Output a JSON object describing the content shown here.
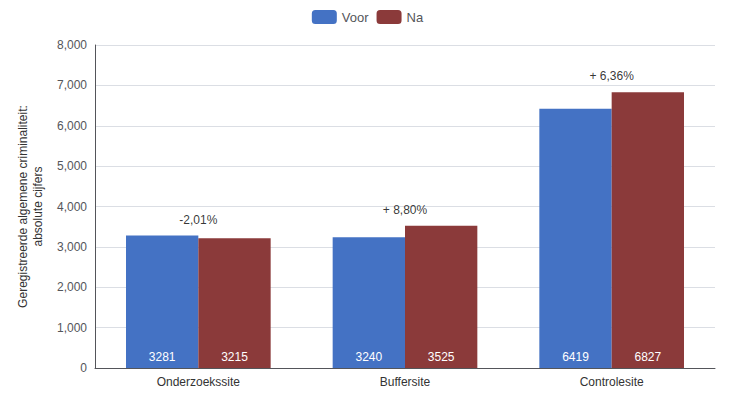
{
  "chart_data": {
    "type": "bar",
    "ylabel": "Geregistreerde algemene criminaliteit:\nabsolute cijfers",
    "categories": [
      "Onderzoekssite",
      "Buffersite",
      "Controlesite"
    ],
    "series": [
      {
        "name": "Voor",
        "color": "#4472C4",
        "values": [
          3281,
          3240,
          6419
        ]
      },
      {
        "name": "Na",
        "color": "#8B3A3A",
        "values": [
          3215,
          3525,
          6827
        ]
      }
    ],
    "annotations": [
      {
        "text": "-2,01%",
        "category": "Onderzoekssite"
      },
      {
        "text": "+ 8,80%",
        "category": "Buffersite"
      },
      {
        "text": "+ 6,36%",
        "category": "Controlesite"
      }
    ],
    "ylim": [
      0,
      8000
    ],
    "yticks": [
      0,
      1000,
      2000,
      3000,
      4000,
      5000,
      6000,
      7000,
      8000
    ],
    "grid": true,
    "legend": "top",
    "data_labels": true
  }
}
